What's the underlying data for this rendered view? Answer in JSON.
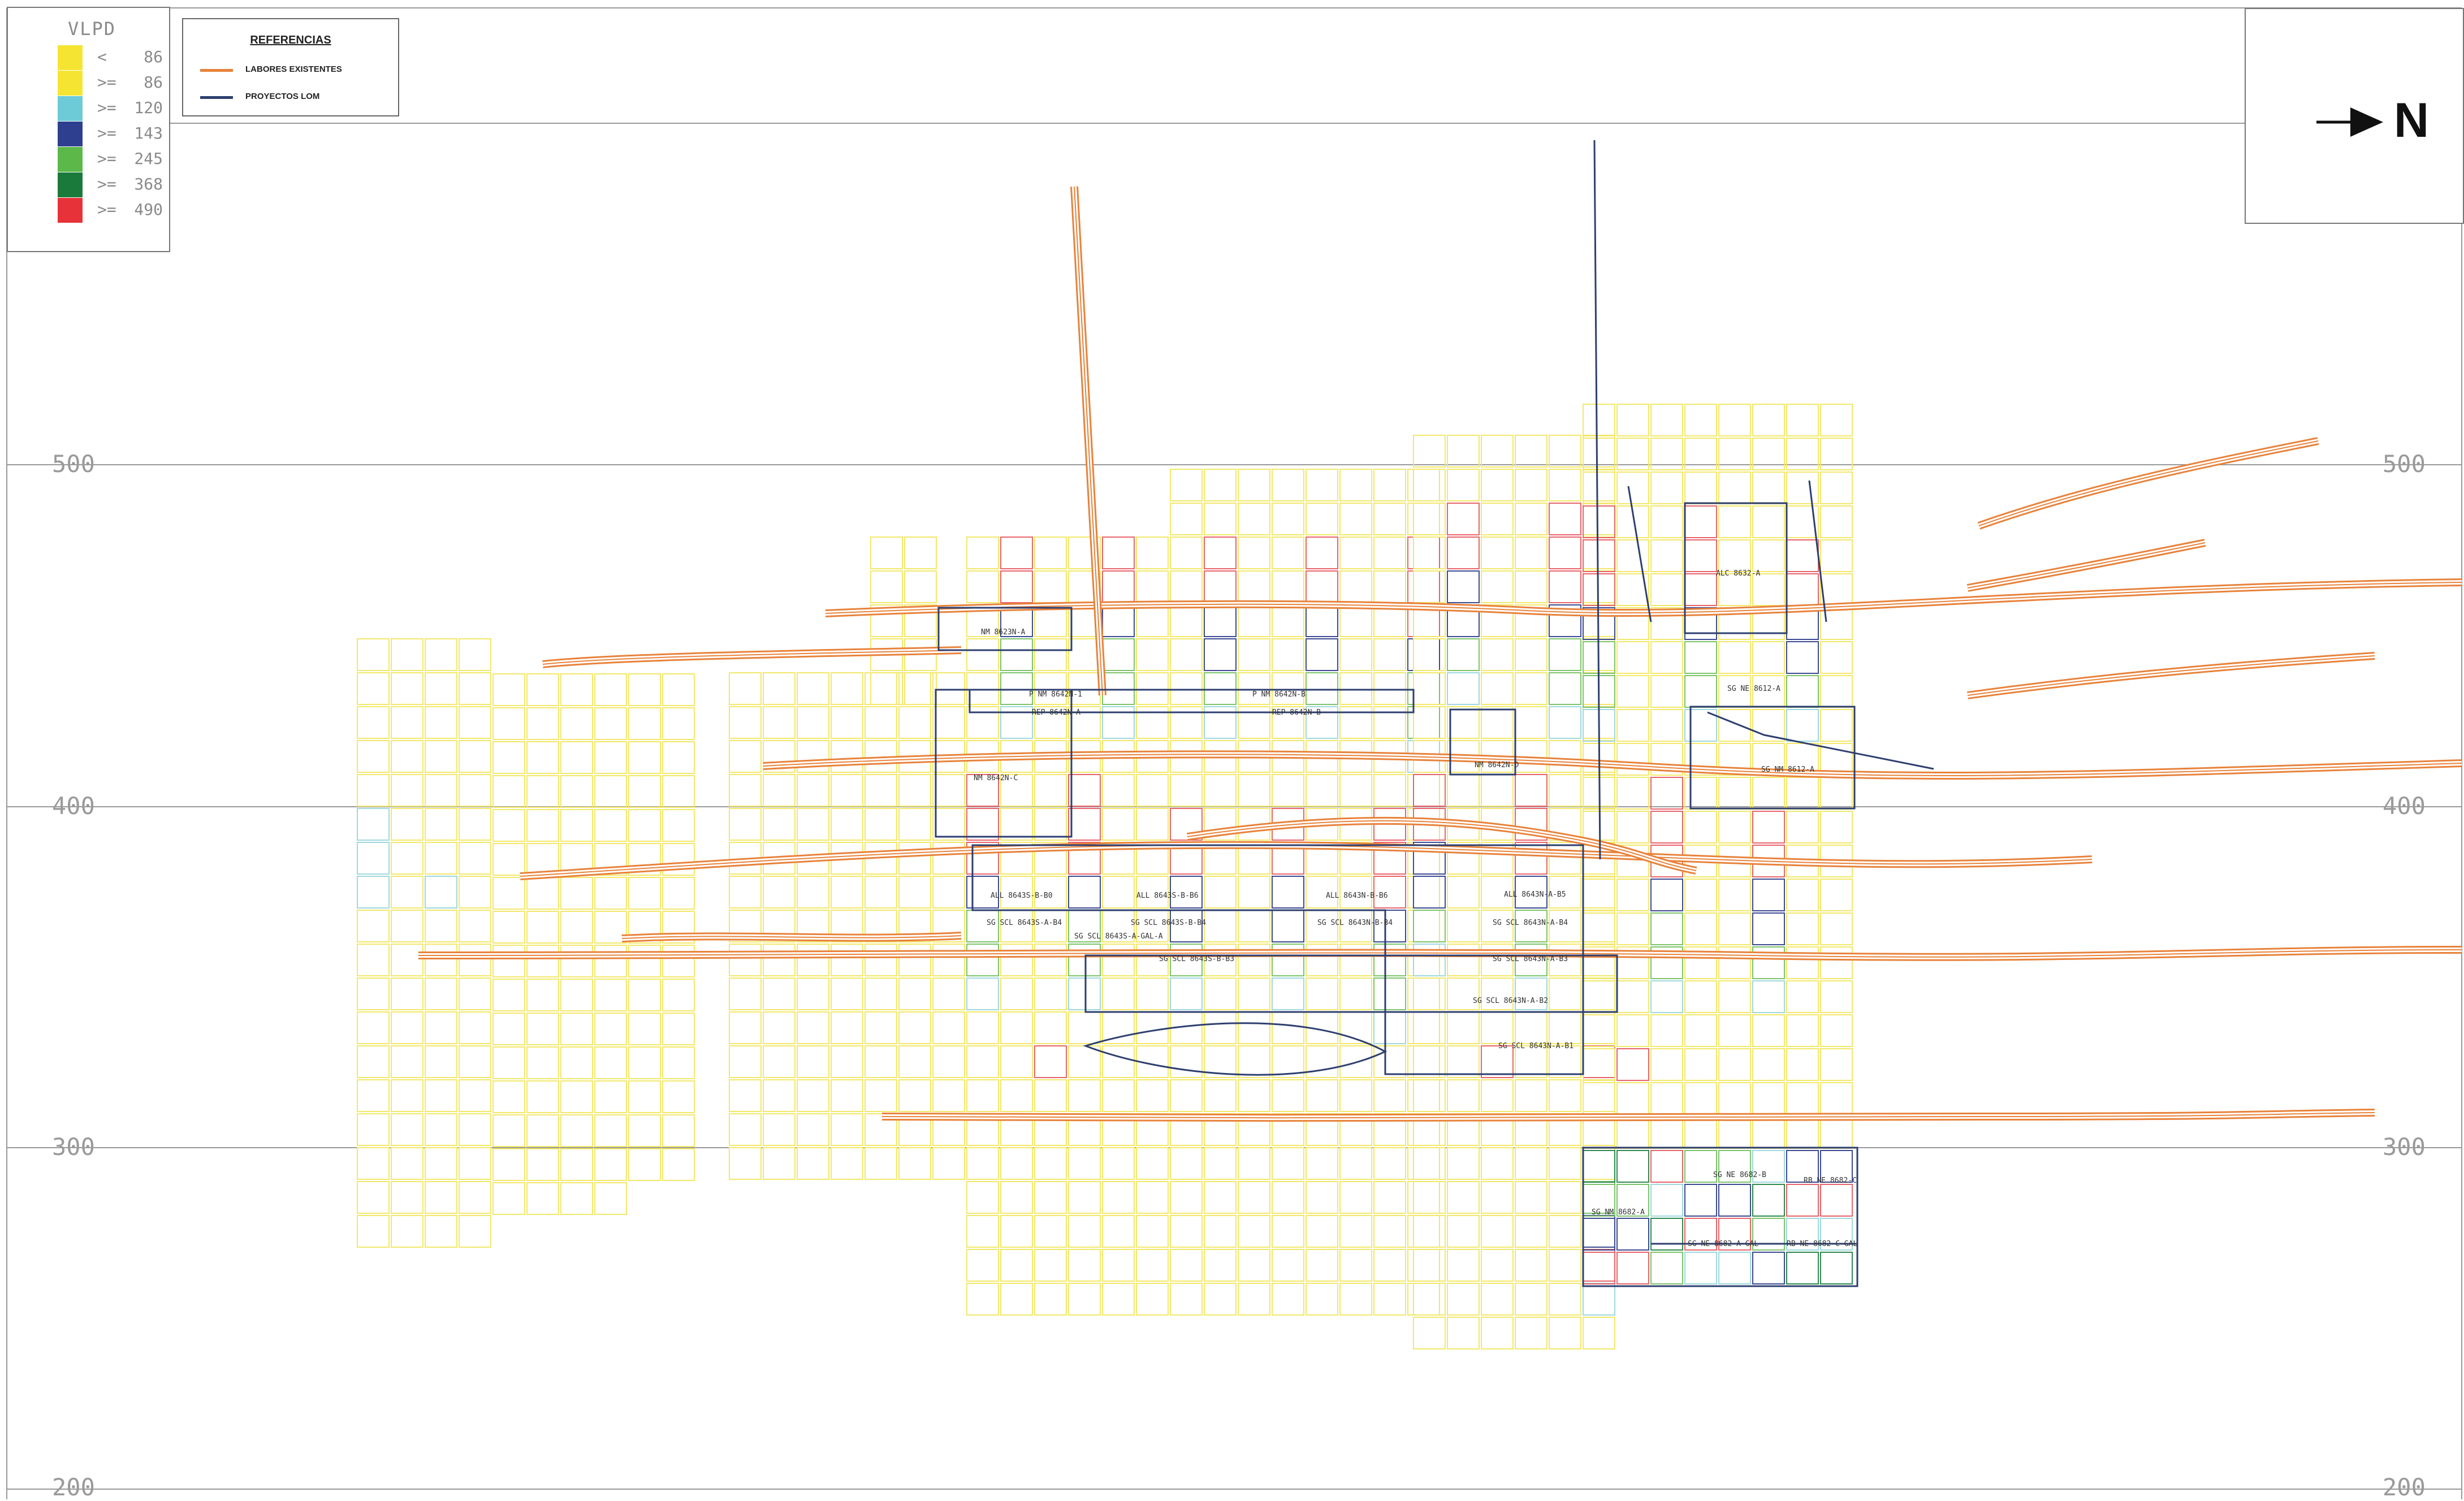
{
  "legend": {
    "title": "VLPD",
    "items": [
      {
        "operator": "<",
        "value": "86",
        "color": "#f5e532"
      },
      {
        "operator": ">=",
        "value": "86",
        "color": "#f5e532"
      },
      {
        "operator": ">=",
        "value": "120",
        "color": "#6ccbd6"
      },
      {
        "operator": ">=",
        "value": "143",
        "color": "#2e3f8f"
      },
      {
        "operator": ">=",
        "value": "245",
        "color": "#5db84a"
      },
      {
        "operator": ">=",
        "value": "368",
        "color": "#1a7a3c"
      },
      {
        "operator": ">=",
        "value": "490",
        "color": "#e8323a"
      }
    ]
  },
  "references": {
    "title": "REFERENCIAS",
    "items": [
      {
        "label": "LABORES EXISTENTES",
        "color": "#e8823a"
      },
      {
        "label": "PROYECTOS LOM",
        "color": "#2e3f6f"
      }
    ]
  },
  "north": {
    "label": "N"
  },
  "levels": {
    "left": [
      "500",
      "400",
      "300",
      "200"
    ],
    "right": [
      "500",
      "400",
      "300",
      "200"
    ]
  },
  "drift_labels": [
    "NM 8623N-A",
    "P NM 8642N-1",
    "P NM 8642N-B",
    "REP 8642N-A",
    "REP 8642N-B",
    "NM 8642N-C",
    "NM 8642N-D",
    "ALC 8632-A",
    "SG NE 8612-A",
    "SG NM 8612-A",
    "ALL 8643S-B-B0",
    "ALL 8643S-B-B6",
    "ALL 8643N-B-B6",
    "ALL 8643N-A-B5",
    "SG SCL 8643S-A-B4",
    "SG SCL 8643S-B-B4",
    "SG SCL 8643N-B-B4",
    "SG SCL 8643N-A-B4",
    "SG SCL 8643S-A-GAL-A",
    "SG SCL 8643S-B-B3",
    "SG SCL 8643N-A-B3",
    "SG SCL 8643N-A-B2",
    "SG SCL 8643N-A-B1",
    "SG NE 8682-B",
    "RB NE 8682-C",
    "SG NM 8682-A",
    "SG NE 8682-A-GAL",
    "RB NE 8682-C-GAL"
  ],
  "colors": {
    "grid": "#999999",
    "existing_works": "#e8823a",
    "lom_projects": "#2e3f6f"
  }
}
